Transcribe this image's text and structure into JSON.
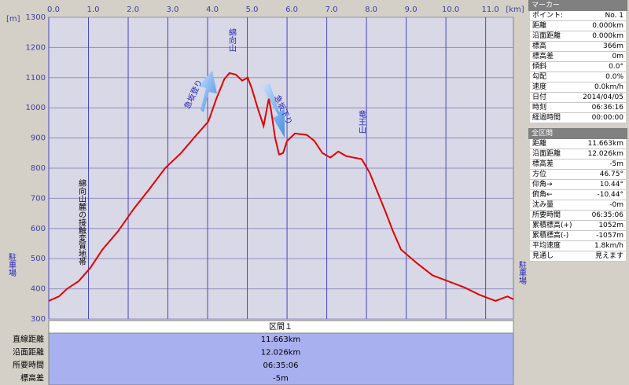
{
  "chart_data": {
    "type": "line",
    "x_unit": "[km]",
    "y_unit": "[m]",
    "xlim": [
      0,
      11.7
    ],
    "ylim": [
      300,
      1300
    ],
    "xticks": [
      {
        "value": 0,
        "label": "0.0"
      },
      {
        "value": 1,
        "label": "1.0"
      },
      {
        "value": 2,
        "label": "2.0"
      },
      {
        "value": 3,
        "label": "3.0"
      },
      {
        "value": 4,
        "label": "4.0"
      },
      {
        "value": 5,
        "label": "5.0"
      },
      {
        "value": 6,
        "label": "6.0"
      },
      {
        "value": 7,
        "label": "7.0"
      },
      {
        "value": 8,
        "label": "8.0"
      },
      {
        "value": 9,
        "label": "9.0"
      },
      {
        "value": 10,
        "label": "10.0"
      },
      {
        "value": 11,
        "label": "11.0"
      }
    ],
    "yticks": [
      300,
      400,
      500,
      600,
      700,
      800,
      900,
      1000,
      1100,
      1200,
      1300
    ],
    "grid": true,
    "series": [
      {
        "name": "標高",
        "color": "#e00000",
        "x": [
          0,
          0.26,
          0.46,
          0.75,
          1.05,
          1.35,
          1.74,
          2.14,
          2.53,
          2.93,
          3.33,
          3.72,
          4.02,
          4.22,
          4.42,
          4.55,
          4.71,
          4.87,
          5.01,
          5.11,
          5.27,
          5.41,
          5.54,
          5.6,
          5.7,
          5.8,
          5.9,
          6.0,
          6.2,
          6.5,
          6.69,
          6.89,
          7.09,
          7.29,
          7.49,
          7.68,
          7.88,
          8.08,
          8.28,
          8.48,
          8.67,
          8.87,
          9.27,
          9.66,
          10.06,
          10.46,
          10.85,
          11.25,
          11.55,
          11.7
        ],
        "values": [
          360,
          375,
          400,
          425,
          470,
          530,
          590,
          665,
          730,
          800,
          850,
          910,
          955,
          1030,
          1095,
          1115,
          1110,
          1090,
          1100,
          1065,
          995,
          940,
          1030,
          990,
          900,
          845,
          850,
          890,
          915,
          910,
          890,
          850,
          835,
          855,
          840,
          835,
          830,
          785,
          720,
          655,
          590,
          530,
          485,
          445,
          425,
          405,
          380,
          360,
          375,
          365
        ]
      }
    ],
    "annotations": [
      "綿向山",
      "急坂登り",
      "急坂下り",
      "竜王山",
      "駐車場",
      "駐車場",
      "綿向山麓の接触変質地帯"
    ]
  },
  "summary": {
    "title": "区間１",
    "rows": [
      [
        "直線距離",
        "11.663km"
      ],
      [
        "沿面距離",
        "12.026km"
      ],
      [
        "所要時間",
        "06:35:06"
      ],
      [
        "標高差",
        "-5m"
      ]
    ]
  },
  "marker": {
    "title": "マーカー",
    "rows": [
      [
        "ポイント:",
        "No. 1"
      ],
      [
        "距離",
        "0.000km"
      ],
      [
        "沿面距離",
        "0.000km"
      ],
      [
        "標高",
        "366m"
      ],
      [
        "標高差",
        "0m"
      ],
      [
        "傾斜",
        "0.0°"
      ],
      [
        "勾配",
        "0.0%"
      ],
      [
        "速度",
        "0.0km/h"
      ],
      [
        "日付",
        "2014/04/05"
      ],
      [
        "時刻",
        "06:36:16"
      ],
      [
        "経過時間",
        "00:00:00"
      ]
    ]
  },
  "total": {
    "title": "全区間",
    "rows": [
      [
        "距離",
        "11.663km"
      ],
      [
        "沿面距離",
        "12.026km"
      ],
      [
        "標高差",
        "-5m"
      ],
      [
        "方位",
        "46.75°"
      ],
      [
        "仰角→",
        "10.44°"
      ],
      [
        "俯角←",
        "-10.44°"
      ],
      [
        "沈み量",
        "-0m"
      ],
      [
        "所要時間",
        "06:35:06"
      ],
      [
        "累積標高(+)",
        "1052m"
      ],
      [
        "累積標高(-)",
        "-1057m"
      ],
      [
        "平均速度",
        "1.8km/h"
      ],
      [
        "見通し",
        "見えます"
      ]
    ]
  }
}
